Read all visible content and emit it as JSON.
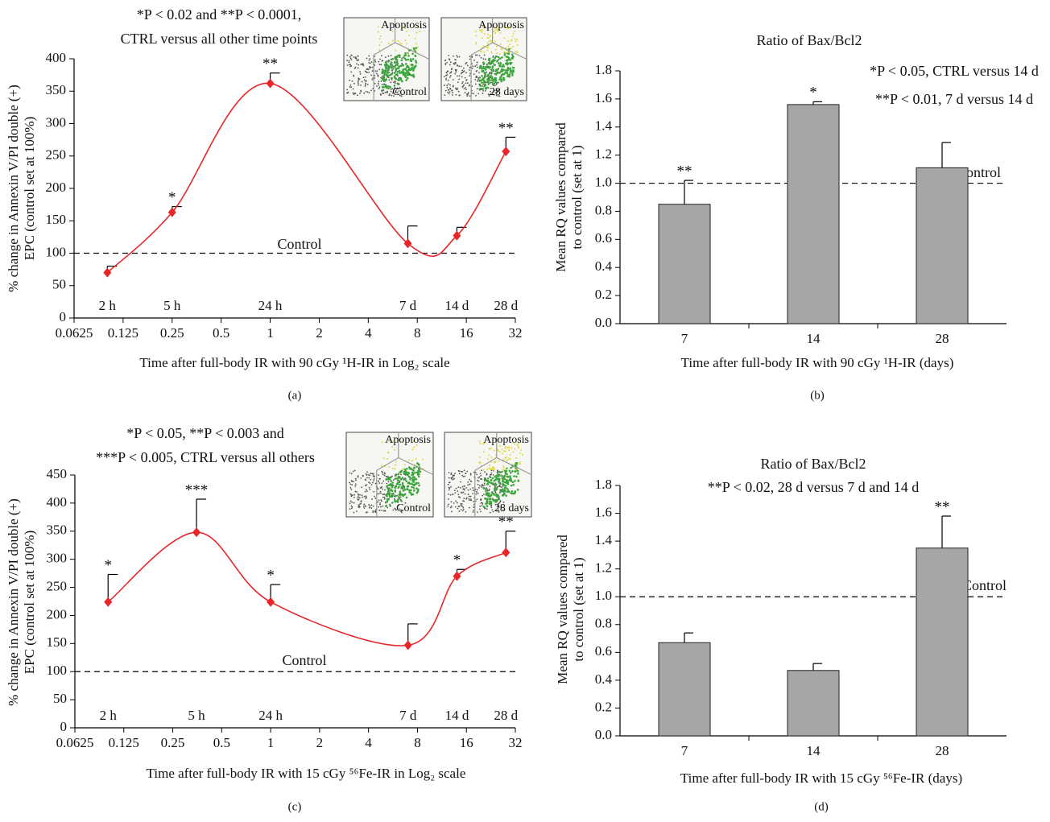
{
  "chart_data": [
    {
      "type": "line",
      "panel_label": "(a)",
      "title": [
        "*P < 0.02 and **P < 0.0001,",
        "CTRL versus all other time points"
      ],
      "xlabel": "Time after full-body IR with 90 cGy ¹H-IR in Log₂ scale",
      "ylabel": [
        "% change in Annexin V/PI double (+)",
        "EPC (control set at 100%)"
      ],
      "x": [
        0.1,
        0.25,
        1,
        7,
        14,
        28
      ],
      "point_labels": [
        "2 h",
        "5 h",
        "24 h",
        "7 d",
        "14 d",
        "28 d"
      ],
      "values": [
        70,
        163,
        362,
        115,
        127,
        257
      ],
      "errors": [
        10,
        9,
        16,
        27,
        13,
        22
      ],
      "significance": [
        null,
        "*",
        "**",
        null,
        null,
        "**"
      ],
      "color": "#e8262a",
      "control": {
        "value": 100,
        "label": "Control"
      },
      "xscale": "log2",
      "xlim": [
        0.0625,
        32
      ],
      "xticks": [
        0.0625,
        0.125,
        0.25,
        0.5,
        1,
        2,
        4,
        8,
        16,
        32
      ],
      "ylim": [
        0,
        400
      ],
      "yticks": [
        0,
        50,
        100,
        150,
        200,
        250,
        300,
        350,
        400
      ],
      "insets": [
        {
          "label": "Apoptosis",
          "caption": "Control"
        },
        {
          "label": "Apoptosis",
          "caption": "28 days"
        }
      ]
    },
    {
      "type": "bar",
      "panel_label": "(b)",
      "title": "Ratio of Bax/Bcl2",
      "notes": [
        "*P < 0.05, CTRL versus 14 d",
        "**P < 0.01, 7 d versus 14 d"
      ],
      "xlabel": "Time after full-body IR with 90 cGy ¹H-IR (days)",
      "ylabel": [
        "Mean RQ values compared",
        "to control (set at 1)"
      ],
      "categories": [
        "7",
        "14",
        "28"
      ],
      "values": [
        0.85,
        1.56,
        1.11
      ],
      "errors": [
        0.17,
        0.02,
        0.18
      ],
      "significance": [
        "**",
        "*",
        null
      ],
      "color": "#a6a6a6",
      "control": {
        "value": 1,
        "label": "Control"
      },
      "ylim": [
        0,
        1.8
      ],
      "yticks": [
        {
          "value": 0,
          "label": "0.0"
        },
        0.2,
        0.4,
        0.6,
        0.8,
        {
          "value": 1,
          "label": "1.0"
        },
        1.2,
        1.4,
        1.6,
        1.8
      ]
    },
    {
      "type": "line",
      "panel_label": "(c)",
      "title": [
        "*P < 0.05, **P < 0.003 and",
        "***P < 0.005, CTRL versus all others"
      ],
      "xlabel": "Time after full-body IR with 15 cGy ⁵⁶Fe-IR in Log₂ scale",
      "ylabel": [
        "% change in Annexin V/PI double (+)",
        "EPC (control set at 100%)"
      ],
      "x": [
        0.1,
        0.35,
        1,
        7,
        14,
        28
      ],
      "point_labels": [
        "2 h",
        "5 h",
        "24 h",
        "7 d",
        "14 d",
        "28 d"
      ],
      "values": [
        224,
        348,
        224,
        147,
        270,
        312
      ],
      "errors": [
        49,
        59,
        31,
        38,
        12,
        38
      ],
      "significance": [
        "*",
        "***",
        "*",
        null,
        "*",
        "**"
      ],
      "color": "#e8262a",
      "control": {
        "value": 100,
        "label": "Control"
      },
      "xscale": "log2",
      "xlim": [
        0.0625,
        32
      ],
      "xticks": [
        0.0625,
        0.125,
        0.25,
        0.5,
        1,
        2,
        4,
        8,
        16,
        32
      ],
      "ylim": [
        0,
        450
      ],
      "yticks": [
        0,
        50,
        100,
        150,
        200,
        250,
        300,
        350,
        400,
        450
      ],
      "insets": [
        {
          "label": "Apoptosis",
          "caption": "Control"
        },
        {
          "label": "Apoptosis",
          "caption": "28 days"
        }
      ]
    },
    {
      "type": "bar",
      "panel_label": "(d)",
      "title": "Ratio of Bax/Bcl2",
      "notes": [
        "**P < 0.02, 28 d versus 7 d and 14 d"
      ],
      "xlabel": "Time after full-body IR with 15 cGy ⁵⁶Fe-IR (days)",
      "ylabel": [
        "Mean RQ values compared",
        "to control (set at 1)"
      ],
      "categories": [
        "7",
        "14",
        "28"
      ],
      "values": [
        0.67,
        0.47,
        1.35
      ],
      "errors": [
        0.07,
        0.05,
        0.23
      ],
      "significance": [
        null,
        null,
        "**"
      ],
      "color": "#a6a6a6",
      "control": {
        "value": 1,
        "label": "Control"
      },
      "ylim": [
        0,
        1.8
      ],
      "yticks": [
        {
          "value": 0,
          "label": "0.0"
        },
        0.2,
        0.4,
        0.6,
        0.8,
        {
          "value": 1,
          "label": "1.0"
        },
        1.2,
        1.4,
        1.6,
        1.8
      ]
    }
  ]
}
